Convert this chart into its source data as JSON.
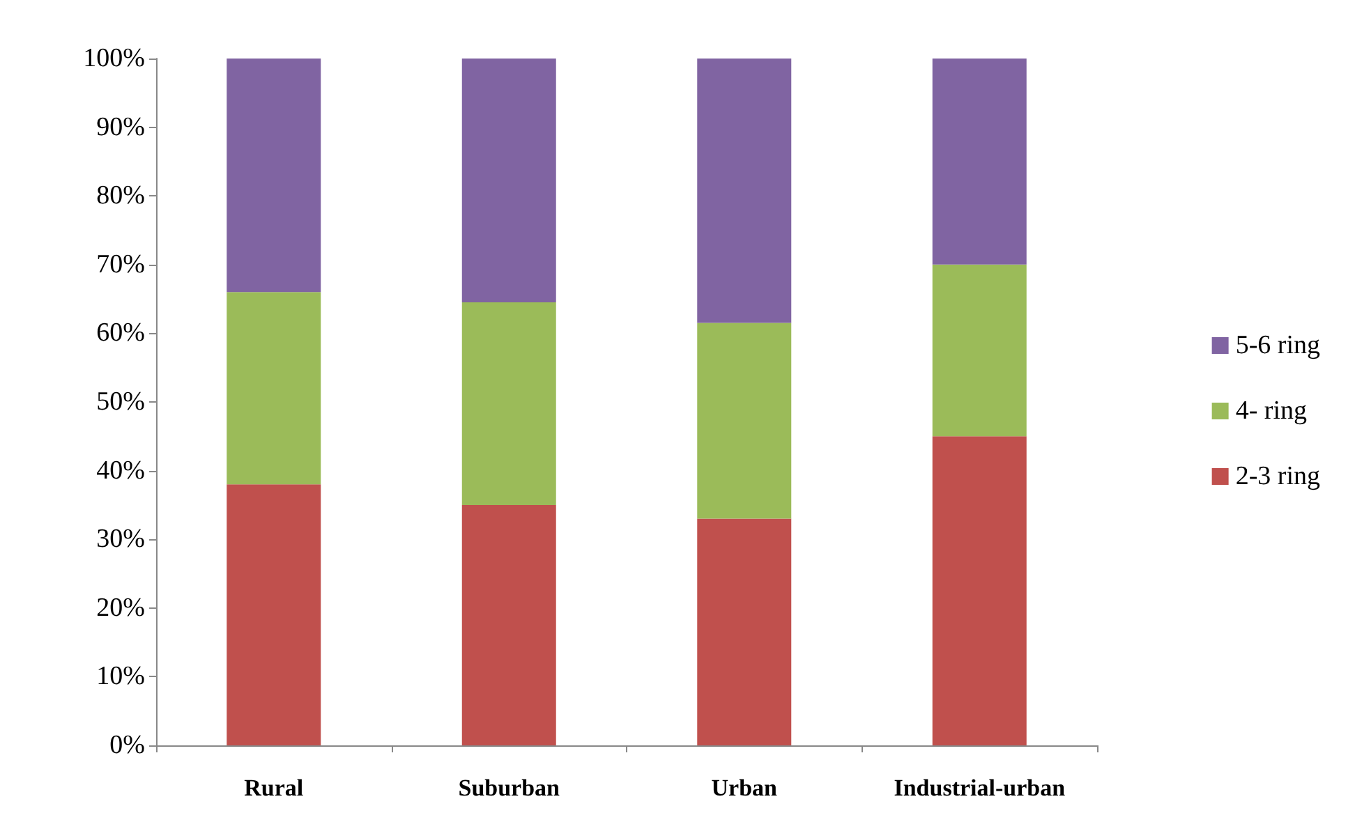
{
  "chart_data": {
    "type": "bar",
    "stacked": true,
    "categories": [
      "Rural",
      "Suburban",
      "Urban",
      "Industrial-urban"
    ],
    "series": [
      {
        "name": "2-3 ring",
        "color": "#c0504d",
        "values": [
          38,
          35,
          33,
          45
        ]
      },
      {
        "name": "4- ring",
        "color": "#9bbb59",
        "values": [
          28,
          29.5,
          28.5,
          25
        ]
      },
      {
        "name": "5-6 ring",
        "color": "#8064a2",
        "values": [
          34,
          35.5,
          38.5,
          30
        ]
      }
    ],
    "ylim": [
      0,
      100
    ],
    "yticks": [
      {
        "value": 0,
        "label": "0%"
      },
      {
        "value": 10,
        "label": "10%"
      },
      {
        "value": 20,
        "label": "20%"
      },
      {
        "value": 30,
        "label": "30%"
      },
      {
        "value": 40,
        "label": "40%"
      },
      {
        "value": 50,
        "label": "50%"
      },
      {
        "value": 60,
        "label": "60%"
      },
      {
        "value": 70,
        "label": "70%"
      },
      {
        "value": 80,
        "label": "80%"
      },
      {
        "value": 90,
        "label": "90%"
      },
      {
        "value": 100,
        "label": "100%"
      }
    ],
    "grid": false,
    "legend": "right"
  }
}
